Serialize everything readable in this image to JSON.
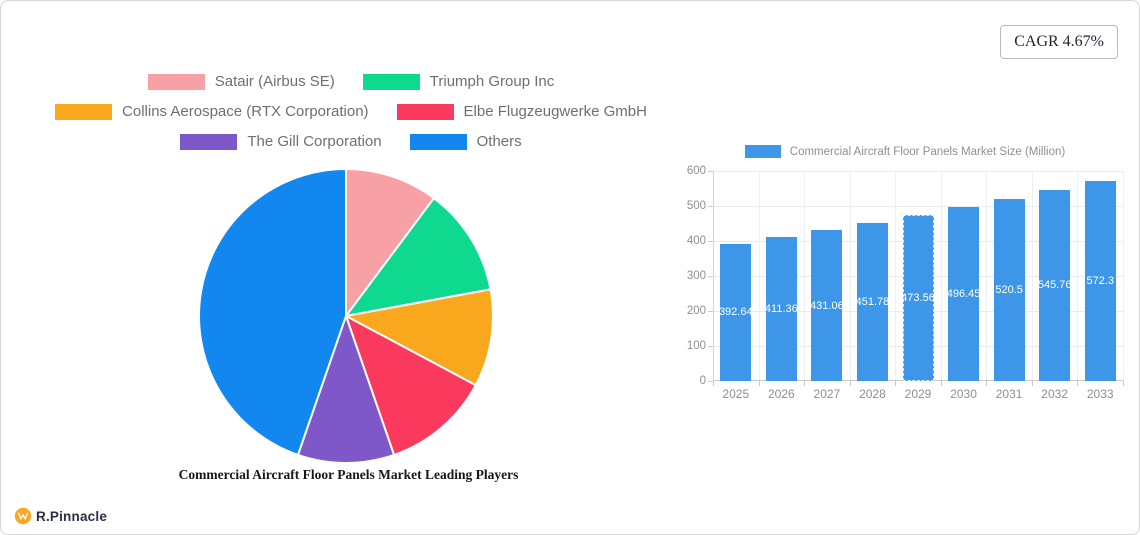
{
  "header": {
    "cagr_badge": "CAGR 4.67%"
  },
  "footer": {
    "brand": "R.Pinnacle"
  },
  "chart_data": [
    {
      "type": "pie",
      "title": "Commercial Aircraft Floor Panels Market Leading Players",
      "series": [
        {
          "name": "Satair (Airbus SE)",
          "value": 10.2,
          "color": "#F7A1A7"
        },
        {
          "name": "Triumph Group Inc",
          "value": 11.9,
          "color": "#0FD98F"
        },
        {
          "name": "Collins Aerospace (RTX Corporation)",
          "value": 10.7,
          "color": "#F9A81D"
        },
        {
          "name": "Elbe Flugzeugwerke GmbH",
          "value": 11.9,
          "color": "#F93A5C"
        },
        {
          "name": "The Gill Corporation",
          "value": 10.6,
          "color": "#7E58C8"
        },
        {
          "name": "Others",
          "value": 44.7,
          "color": "#1287F0"
        }
      ],
      "start_angle": "top",
      "direction": "clockwise",
      "legend_position": "top",
      "note": "slice values estimated from arc angles; no data labels shown"
    },
    {
      "type": "bar",
      "legend": "Commercial Aircraft Floor Panels Market Size (Million)",
      "categories": [
        "2025",
        "2026",
        "2027",
        "2028",
        "2029",
        "2030",
        "2031",
        "2032",
        "2033"
      ],
      "values": [
        392.64,
        411.36,
        431.06,
        451.78,
        473.56,
        496.45,
        520.5,
        545.76,
        572.3
      ],
      "bar_color": "#3d96e8",
      "value_label_color": "#ffffff",
      "ylim": [
        0,
        600
      ],
      "yticks": [
        0,
        100,
        200,
        300,
        400,
        500,
        600
      ],
      "grid": true,
      "highlighted_index": 4
    }
  ]
}
